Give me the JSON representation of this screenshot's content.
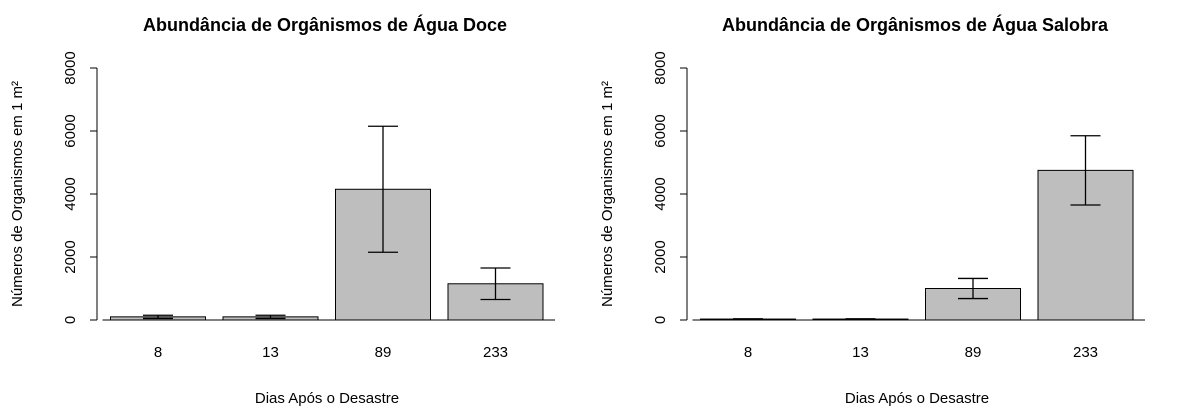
{
  "chart_data": [
    {
      "type": "bar",
      "title": "Abundância de Orgânismos de Água Doce",
      "x_label": "Dias Após o Desastre",
      "y_label": "Números de Organismos em 1 m²",
      "categories": [
        "8",
        "13",
        "89",
        "233"
      ],
      "values": [
        100,
        100,
        4150,
        1150
      ],
      "errors": [
        50,
        50,
        2000,
        500
      ],
      "color": "#bebebe",
      "ylim": [
        0,
        8000
      ],
      "yticks": [
        0,
        2000,
        4000,
        6000,
        8000
      ]
    },
    {
      "type": "bar",
      "title": "Abundância de Orgânismos de Água Salobra",
      "x_label": "Dias Após o Desastre",
      "y_label": "Números de Organismos em 1 m²",
      "categories": [
        "8",
        "13",
        "89",
        "233"
      ],
      "values": [
        30,
        30,
        1000,
        4750
      ],
      "errors": [
        10,
        10,
        320,
        1100
      ],
      "color": "#bebebe",
      "ylim": [
        0,
        8000
      ],
      "yticks": [
        0,
        2000,
        4000,
        6000,
        8000
      ]
    }
  ]
}
